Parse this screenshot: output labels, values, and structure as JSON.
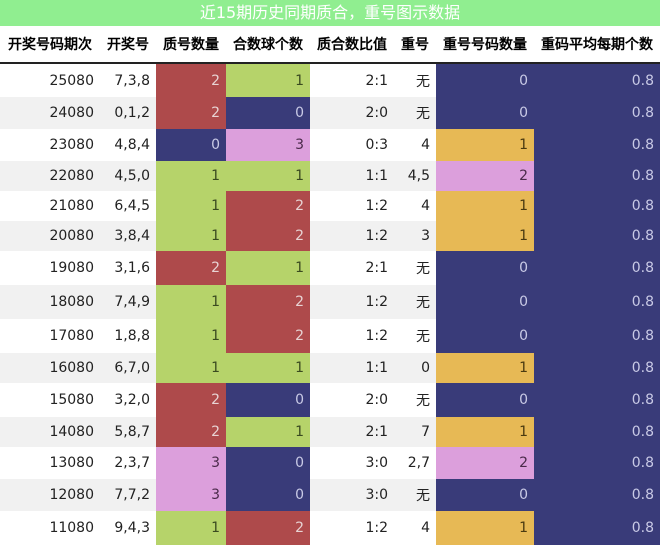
{
  "title": "近15期历史同期质合，重号图示数据",
  "colors": {
    "title_bg": "#90ee90",
    "red": "#ae4a4b",
    "green": "#b6d36a",
    "navy": "#393b79",
    "pink": "#dc9fdc",
    "orange": "#e7b955",
    "stripe": "#f1f1f1"
  },
  "headers": [
    "开奖号码期次",
    "开奖号",
    "质号数量",
    "合数球个数",
    "质合数比值",
    "重号",
    "重号号码数量",
    "重码平均每期个数"
  ],
  "rows": [
    {
      "period": "25080",
      "number": "7,3,8",
      "prime": "2",
      "composite": "1",
      "ratio": "2:1",
      "repeat": "无",
      "repeat_count": "0",
      "avg": "0.8",
      "prime_color": "red",
      "composite_color": "green",
      "repeat_color": "navy"
    },
    {
      "period": "24080",
      "number": "0,1,2",
      "prime": "2",
      "composite": "0",
      "ratio": "2:0",
      "repeat": "无",
      "repeat_count": "0",
      "avg": "0.8",
      "prime_color": "red",
      "composite_color": "navy",
      "repeat_color": "navy"
    },
    {
      "period": "23080",
      "number": "4,8,4",
      "prime": "0",
      "composite": "3",
      "ratio": "0:3",
      "repeat": "4",
      "repeat_count": "1",
      "avg": "0.8",
      "prime_color": "navy",
      "composite_color": "pink",
      "repeat_color": "orange"
    },
    {
      "period": "22080",
      "number": "4,5,0",
      "prime": "1",
      "composite": "1",
      "ratio": "1:1",
      "repeat": "4,5",
      "repeat_count": "2",
      "avg": "0.8",
      "prime_color": "green",
      "composite_color": "green",
      "repeat_color": "pink"
    },
    {
      "period": "21080",
      "number": "6,4,5",
      "prime": "1",
      "composite": "2",
      "ratio": "1:2",
      "repeat": "4",
      "repeat_count": "1",
      "avg": "0.8",
      "prime_color": "green",
      "composite_color": "red",
      "repeat_color": "orange"
    },
    {
      "period": "20080",
      "number": "3,8,4",
      "prime": "1",
      "composite": "2",
      "ratio": "1:2",
      "repeat": "3",
      "repeat_count": "1",
      "avg": "0.8",
      "prime_color": "green",
      "composite_color": "red",
      "repeat_color": "orange"
    },
    {
      "period": "19080",
      "number": "3,1,6",
      "prime": "2",
      "composite": "1",
      "ratio": "2:1",
      "repeat": "无",
      "repeat_count": "0",
      "avg": "0.8",
      "prime_color": "red",
      "composite_color": "green",
      "repeat_color": "navy"
    },
    {
      "period": "18080",
      "number": "7,4,9",
      "prime": "1",
      "composite": "2",
      "ratio": "1:2",
      "repeat": "无",
      "repeat_count": "0",
      "avg": "0.8",
      "prime_color": "green",
      "composite_color": "red",
      "repeat_color": "navy"
    },
    {
      "period": "17080",
      "number": "1,8,8",
      "prime": "1",
      "composite": "2",
      "ratio": "1:2",
      "repeat": "无",
      "repeat_count": "0",
      "avg": "0.8",
      "prime_color": "green",
      "composite_color": "red",
      "repeat_color": "navy"
    },
    {
      "period": "16080",
      "number": "6,7,0",
      "prime": "1",
      "composite": "1",
      "ratio": "1:1",
      "repeat": "0",
      "repeat_count": "1",
      "avg": "0.8",
      "prime_color": "green",
      "composite_color": "green",
      "repeat_color": "orange"
    },
    {
      "period": "15080",
      "number": "3,2,0",
      "prime": "2",
      "composite": "0",
      "ratio": "2:0",
      "repeat": "无",
      "repeat_count": "0",
      "avg": "0.8",
      "prime_color": "red",
      "composite_color": "navy",
      "repeat_color": "navy"
    },
    {
      "period": "14080",
      "number": "5,8,7",
      "prime": "2",
      "composite": "1",
      "ratio": "2:1",
      "repeat": "7",
      "repeat_count": "1",
      "avg": "0.8",
      "prime_color": "red",
      "composite_color": "green",
      "repeat_color": "orange"
    },
    {
      "period": "13080",
      "number": "2,3,7",
      "prime": "3",
      "composite": "0",
      "ratio": "3:0",
      "repeat": "2,7",
      "repeat_count": "2",
      "avg": "0.8",
      "prime_color": "pink",
      "composite_color": "navy",
      "repeat_color": "pink"
    },
    {
      "period": "12080",
      "number": "7,7,2",
      "prime": "3",
      "composite": "0",
      "ratio": "3:0",
      "repeat": "无",
      "repeat_count": "0",
      "avg": "0.8",
      "prime_color": "pink",
      "composite_color": "navy",
      "repeat_color": "navy"
    },
    {
      "period": "11080",
      "number": "9,4,3",
      "prime": "1",
      "composite": "2",
      "ratio": "1:2",
      "repeat": "4",
      "repeat_count": "1",
      "avg": "0.8",
      "prime_color": "green",
      "composite_color": "red",
      "repeat_color": "orange"
    }
  ]
}
